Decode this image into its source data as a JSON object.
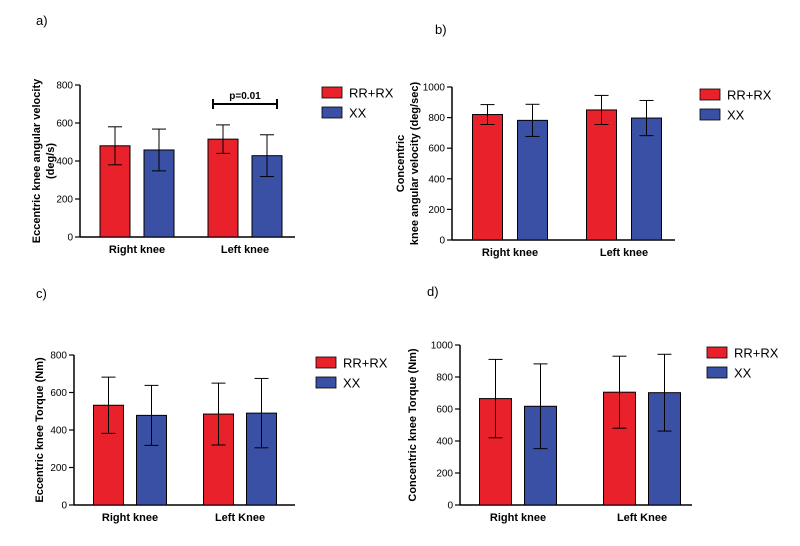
{
  "colors": {
    "series_1": "#e8212b",
    "series_2": "#3a50a5",
    "axis": "#000000"
  },
  "chart_data": [
    {
      "panel": "a)",
      "type": "bar",
      "categories": [
        "Right knee",
        "Left knee"
      ],
      "ylabel_lines": [
        "Eccentric knee angular velocity",
        "(deg/s)"
      ],
      "ylim": [
        0,
        800
      ],
      "yticks": [
        0,
        200,
        400,
        600,
        800
      ],
      "series": [
        {
          "name": "RR+RX",
          "values": [
            480,
            515
          ],
          "errors": [
            100,
            75
          ]
        },
        {
          "name": "XX",
          "values": [
            458,
            428
          ],
          "errors": [
            110,
            110
          ]
        }
      ],
      "annotations": [
        {
          "text": "p=0.01"
        }
      ]
    },
    {
      "panel": "b)",
      "type": "bar",
      "categories": [
        "Right knee",
        "Left knee"
      ],
      "ylabel_lines": [
        "Concentric",
        "knee angular velocity (deg/sec)"
      ],
      "ylim": [
        0,
        1000
      ],
      "yticks": [
        0,
        200,
        400,
        600,
        800,
        1000
      ],
      "series": [
        {
          "name": "RR+RX",
          "values": [
            820,
            850
          ],
          "errors": [
            65,
            95
          ]
        },
        {
          "name": "XX",
          "values": [
            782,
            797
          ],
          "errors": [
            105,
            115
          ]
        }
      ]
    },
    {
      "panel": "c)",
      "type": "bar",
      "categories": [
        "Right knee",
        "Left Knee"
      ],
      "ylabel_lines": [
        "Eccentric knee Torque (Nm)"
      ],
      "ylim": [
        0,
        800
      ],
      "yticks": [
        0,
        200,
        400,
        600,
        800
      ],
      "series": [
        {
          "name": "RR+RX",
          "values": [
            532,
            485
          ],
          "errors": [
            150,
            165
          ]
        },
        {
          "name": "XX",
          "values": [
            478,
            490
          ],
          "errors": [
            160,
            185
          ]
        }
      ]
    },
    {
      "panel": "d)",
      "type": "bar",
      "categories": [
        "Right knee",
        "Left Knee"
      ],
      "ylabel_lines": [
        "Concentric knee Torque (Nm)"
      ],
      "ylim": [
        0,
        1000
      ],
      "yticks": [
        0,
        200,
        400,
        600,
        800,
        1000
      ],
      "series": [
        {
          "name": "RR+RX",
          "values": [
            665,
            705
          ],
          "errors": [
            245,
            225
          ]
        },
        {
          "name": "XX",
          "values": [
            617,
            702
          ],
          "errors": [
            265,
            240
          ]
        }
      ]
    }
  ]
}
